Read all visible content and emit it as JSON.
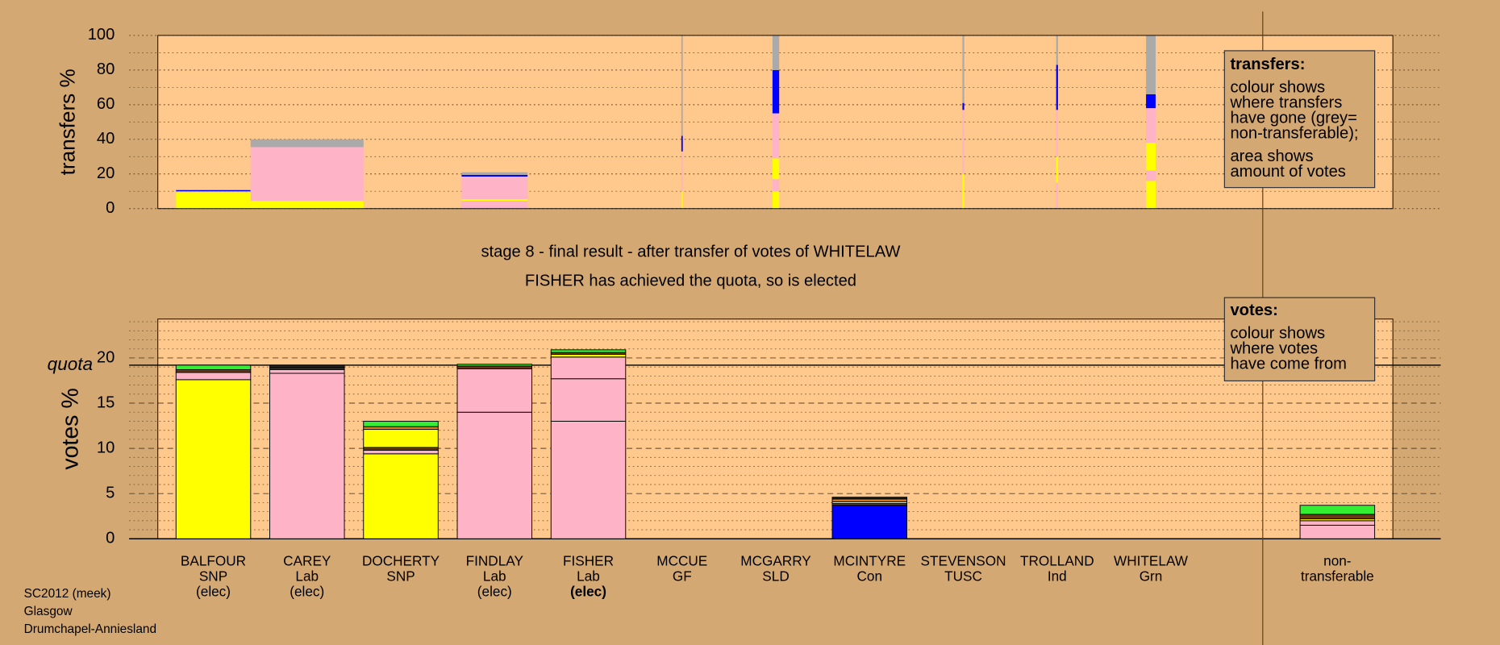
{
  "chart_data": [
    {
      "type": "mekko",
      "ylabel": "transfers %",
      "ylim": [
        0,
        100
      ],
      "yticks": [
        0,
        20,
        40,
        60,
        80,
        100
      ],
      "minor_yticks": [
        10,
        30,
        50,
        70,
        90
      ],
      "grid": "dotted",
      "bars": [
        {
          "amount": 8.25,
          "values": [
            9.5,
            0.5,
            0.7
          ],
          "colors": [
            "#ffff00",
            "#ffb3c6",
            "#0000ff"
          ]
        },
        {
          "amount": 12.5,
          "values": [
            4.5,
            31,
            4.5
          ],
          "colors": [
            "#ffff00",
            "#ffb3c6",
            "#aaaaaa"
          ]
        },
        null,
        {
          "amount": 7.3,
          "values": [
            4.5,
            1,
            13,
            1,
            1.5
          ],
          "colors": [
            "#ffb3c6",
            "#ffff00",
            "#ffb3c6",
            "#0000ff",
            "#aaaaaa"
          ]
        },
        null,
        {
          "amount": 0.16,
          "values": [
            10,
            23,
            9,
            58
          ],
          "colors": [
            "#ffff00",
            "#ffb3c6",
            "#0000ff",
            "#aaaaaa"
          ]
        },
        {
          "amount": 0.74,
          "values": [
            10,
            7,
            12,
            26,
            25,
            20
          ],
          "colors": [
            "#ffff00",
            "#ffb3c6",
            "#ffff00",
            "#ffb3c6",
            "#0000ff",
            "#aaaaaa"
          ]
        },
        null,
        {
          "amount": 0.2,
          "values": [
            20,
            37,
            4,
            39
          ],
          "colors": [
            "#ffff00",
            "#ffb3c6",
            "#0000ff",
            "#aaaaaa"
          ]
        },
        {
          "amount": 0.2,
          "values": [
            15,
            15,
            27,
            26,
            17
          ],
          "colors": [
            "#ffb3c6",
            "#ffff00",
            "#ffb3c6",
            "#0000ff",
            "#aaaaaa"
          ]
        },
        {
          "amount": 1.06,
          "values": [
            16,
            6,
            16,
            20,
            8,
            34
          ],
          "colors": [
            "#ffff00",
            "#ffb3c6",
            "#ffff00",
            "#ffb3c6",
            "#0000ff",
            "#aaaaaa"
          ]
        }
      ]
    },
    {
      "type": "bar",
      "title": [
        "stage 8 - final result - after transfer of votes of WHITELAW",
        "FISHER has achieved the quota, so is elected"
      ],
      "ylabel": "votes %",
      "ylim": [
        0,
        24.3
      ],
      "yticks": [
        0,
        5,
        10,
        15,
        20
      ],
      "minor_yticks": [
        1,
        2,
        3,
        4,
        6,
        7,
        8,
        9,
        11,
        12,
        13,
        14,
        16,
        17,
        18,
        19,
        21,
        22,
        23,
        24
      ],
      "grid": "dashed",
      "quota": 19.2,
      "quota_label": "quota",
      "bars": [
        {
          "label": [
            "BALFOUR",
            "SNP",
            "(elec)"
          ],
          "values": [
            17.6,
            0.8,
            0.3,
            0.5
          ],
          "colors": [
            "#ffff00",
            "#ffb3c6",
            "#6b3a10",
            "#33ee33"
          ]
        },
        {
          "label": [
            "CAREY",
            "Lab",
            "(elec)"
          ],
          "values": [
            18.3,
            0.4,
            0.2,
            0.3
          ],
          "colors": [
            "#ffb3c6",
            "#ffb3c6",
            "#6b3a10",
            "#202020"
          ]
        },
        {
          "label": [
            "DOCHERTY",
            "SNP"
          ],
          "values": [
            9.4,
            0.4,
            0.3,
            2.0,
            0.3,
            0.6
          ],
          "colors": [
            "#ffff00",
            "#ffb3c6",
            "#6b3a10",
            "#ffff00",
            "#e08020",
            "#33ee33"
          ]
        },
        {
          "label": [
            "FINDLAY",
            "Lab",
            "(elec)"
          ],
          "values": [
            14.0,
            4.8,
            0.3,
            0.2
          ],
          "colors": [
            "#ffb3c6",
            "#ffb3c6",
            "#6b3a10",
            "#33ee33"
          ]
        },
        {
          "label": [
            "FISHER",
            "Lab",
            "(elec)"
          ],
          "bold": true,
          "values": [
            13.0,
            4.7,
            2.4,
            0.3,
            0.2,
            0.3
          ],
          "colors": [
            "#ffb3c6",
            "#ffb3c6",
            "#ffb3c6",
            "#ffff00",
            "#6b3a10",
            "#33ee33"
          ]
        },
        {
          "label": [
            "MCCUE",
            "GF"
          ],
          "values": [
            0
          ],
          "colors": [
            "#202020"
          ]
        },
        {
          "label": [
            "MCGARRY",
            "SLD"
          ],
          "values": [
            0
          ],
          "colors": [
            "#202020"
          ]
        },
        {
          "label": [
            "MCINTYRE",
            "Con"
          ],
          "values": [
            3.7,
            0.2,
            0.2,
            0.3,
            0.2
          ],
          "colors": [
            "#0000ff",
            "#6b3a10",
            "#ffff00",
            "#e08020",
            "#202020"
          ]
        },
        {
          "label": [
            "STEVENSON",
            "TUSC"
          ],
          "values": [
            0
          ],
          "colors": [
            "#202020"
          ]
        },
        {
          "label": [
            "TROLLAND",
            "Ind"
          ],
          "values": [
            0
          ],
          "colors": [
            "#202020"
          ]
        },
        {
          "label": [
            "WHITELAW",
            "Grn"
          ],
          "values": [
            0
          ],
          "colors": [
            "#202020"
          ]
        }
      ],
      "nontransferable": {
        "label": [
          "non-",
          "transferable"
        ],
        "values": [
          1.5,
          0.5,
          0.2,
          0.5,
          1.0
        ],
        "colors": [
          "#ffb3c6",
          "#ffb3c6",
          "#ffff00",
          "#6b3a10",
          "#33ee33"
        ]
      }
    }
  ],
  "notes": {
    "transfers_box": [
      "transfers:",
      "colour shows",
      "where transfers",
      "have gone (grey=",
      "non-transferable);",
      "area shows",
      "amount of votes"
    ],
    "votes_box": [
      "votes:",
      "colour shows",
      "where votes",
      "have come from"
    ],
    "footer": [
      "SC2012 (meek)",
      "Glasgow",
      "Drumchapel-Anniesland"
    ]
  }
}
